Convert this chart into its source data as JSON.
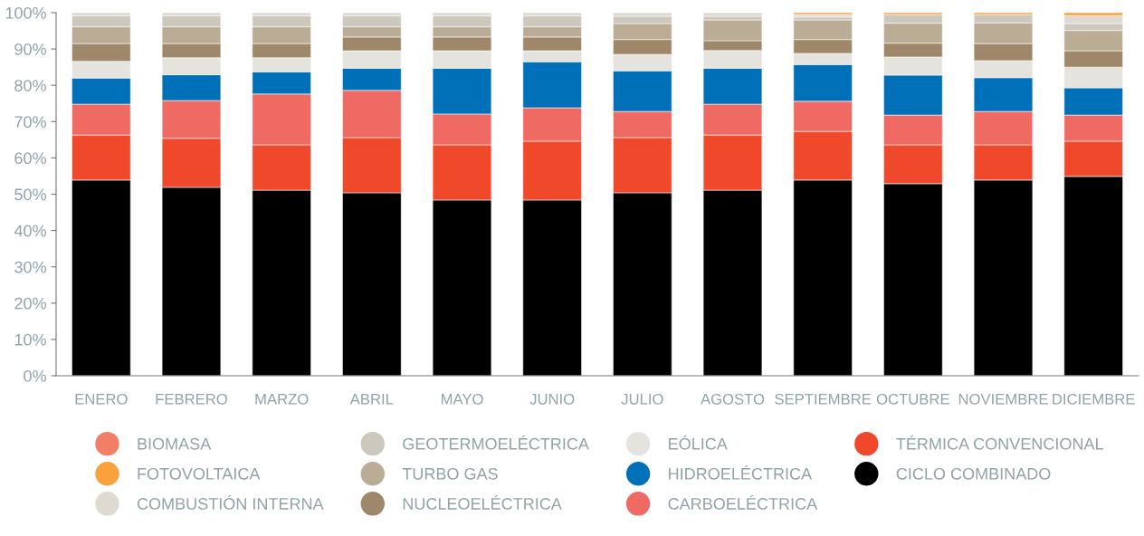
{
  "chart_data": {
    "type": "bar",
    "stacked": true,
    "legend": "bottom",
    "categories": [
      "ENERO",
      "FEBRERO",
      "MARZO",
      "ABRIL",
      "MAYO",
      "JUNIO",
      "JULIO",
      "AGOSTO",
      "SEPTIEMBRE",
      "OCTUBRE",
      "NOVIEMBRE",
      "DICIEMBRE"
    ],
    "ylim": [
      0,
      100
    ],
    "yticks": [
      {
        "value": 0,
        "label": "0%"
      },
      {
        "value": 10,
        "label": "10%"
      },
      {
        "value": 20,
        "label": "20%"
      },
      {
        "value": 30,
        "label": "30%"
      },
      {
        "value": 40,
        "label": "40%"
      },
      {
        "value": 50,
        "label": "50%"
      },
      {
        "value": 60,
        "label": "60%"
      },
      {
        "value": 70,
        "label": "70%"
      },
      {
        "value": 80,
        "label": "80%"
      },
      {
        "value": 90,
        "label": "90%"
      },
      {
        "value": 100,
        "label": "100%"
      }
    ],
    "series": [
      {
        "name": "CICLO COMBINADO",
        "color": "#000000",
        "values": [
          53.9,
          51.9,
          51.1,
          50.4,
          48.4,
          48.4,
          50.4,
          51.1,
          53.9,
          52.9,
          53.9,
          54.9
        ]
      },
      {
        "name": "TÉRMICA CONVENCIONAL",
        "color": "#ef482b",
        "values": [
          12.4,
          13.5,
          12.5,
          15.2,
          15.2,
          16.2,
          15.2,
          15.2,
          13.4,
          10.7,
          9.7,
          9.7
        ]
      },
      {
        "name": "CARBOELÉCTRICA",
        "color": "#f06a64",
        "values": [
          8.5,
          10.4,
          14.0,
          13.0,
          8.5,
          9.2,
          7.2,
          8.5,
          8.3,
          8.2,
          9.2,
          7.2
        ]
      },
      {
        "name": "HIDROELÉCTRICA",
        "color": "#0070b8",
        "values": [
          7.2,
          7.1,
          6.1,
          6.1,
          12.6,
          12.7,
          11.2,
          9.9,
          10.1,
          11.0,
          9.3,
          7.5
        ]
      },
      {
        "name": "EÓLICA",
        "color": "#e5e3de",
        "values": [
          4.6,
          4.7,
          3.9,
          4.8,
          4.8,
          3.0,
          4.5,
          4.9,
          3.1,
          5.0,
          4.7,
          5.7
        ]
      },
      {
        "name": "NUCLEOELÉCTRICA",
        "color": "#9e8869",
        "values": [
          4.9,
          3.9,
          3.9,
          3.8,
          3.8,
          3.8,
          4.1,
          2.7,
          3.8,
          3.8,
          4.7,
          4.5
        ]
      },
      {
        "name": "TURBO GAS",
        "color": "#bbad95",
        "values": [
          4.6,
          4.6,
          4.6,
          2.8,
          2.8,
          2.8,
          4.4,
          5.7,
          5.4,
          5.5,
          5.7,
          5.6
        ]
      },
      {
        "name": "GEOTERMOELÉCTRICA",
        "color": "#cdc8bd",
        "values": [
          3.0,
          3.0,
          3.0,
          3.0,
          3.0,
          3.0,
          2.0,
          1.0,
          0.8,
          2.4,
          2.3,
          1.9
        ]
      },
      {
        "name": "COMBUSTIÓN INTERNA",
        "color": "#dedad2",
        "values": [
          0.9,
          0.9,
          0.9,
          0.9,
          0.9,
          0.9,
          1.0,
          1.0,
          0.7,
          null,
          null,
          2.2
        ]
      },
      {
        "name": "FOTOVOLTAICA",
        "color": "#f9a23c",
        "values": [
          null,
          null,
          null,
          null,
          null,
          null,
          null,
          null,
          0.5,
          0.5,
          0.5,
          0.8
        ]
      },
      {
        "name": "BIOMASA",
        "color": "#f37e66",
        "values": [
          null,
          null,
          null,
          null,
          null,
          null,
          null,
          null,
          null,
          null,
          null,
          null
        ]
      }
    ]
  }
}
